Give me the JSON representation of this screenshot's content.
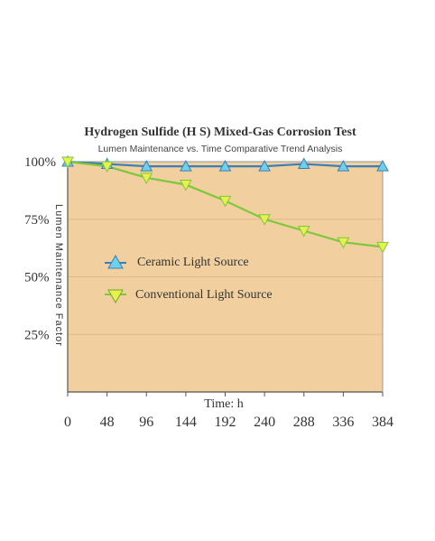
{
  "chart_data": {
    "type": "line",
    "title": "Hydrogen Sulfide (H S) Mixed-Gas Corrosion Test",
    "subtitle": "Lumen Maintenance vs. Time   Comparative Trend Analysis",
    "xlabel": "Time:  h",
    "ylabel": "Lumen Maintenance Factor",
    "x": [
      0,
      48,
      96,
      144,
      192,
      240,
      288,
      336,
      384
    ],
    "x_tick_labels": [
      "0",
      "48",
      "96",
      "144",
      "192",
      "240",
      "288",
      "336",
      "384"
    ],
    "y_ticks": [
      25,
      50,
      75,
      100
    ],
    "y_tick_labels": [
      "25%",
      "50%",
      "75%",
      "100%"
    ],
    "xlim": [
      0,
      384
    ],
    "ylim": [
      0,
      100
    ],
    "grid": true,
    "legend_position": "center-left",
    "series": [
      {
        "name": "Ceramic Light Source",
        "values": [
          100,
          99,
          98,
          98,
          98,
          98,
          99,
          98,
          98
        ],
        "line_color": "#3a7fb5",
        "marker": "triangle-up",
        "marker_color": "#6fd0ee"
      },
      {
        "name": "Conventional Light Source",
        "values": [
          100,
          98,
          93,
          90,
          83,
          75,
          70,
          65,
          63
        ],
        "line_color": "#7dc83a",
        "marker": "triangle-down",
        "marker_color": "#e8f050"
      }
    ],
    "plot_background": "#f1cf9e"
  }
}
